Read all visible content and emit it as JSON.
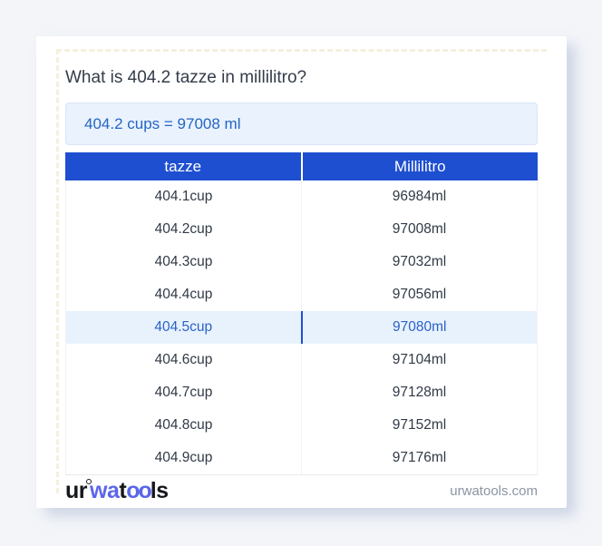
{
  "page": {
    "title": "What is 404.2 tazze in millilitro?",
    "answer": "404.2 cups = 97008 ml"
  },
  "table": {
    "headers": [
      "tazze",
      "Millilitro"
    ],
    "highlight_index": 4,
    "rows": [
      {
        "cup": "404.1cup",
        "ml": "96984ml"
      },
      {
        "cup": "404.2cup",
        "ml": "97008ml"
      },
      {
        "cup": "404.3cup",
        "ml": "97032ml"
      },
      {
        "cup": "404.4cup",
        "ml": "97056ml"
      },
      {
        "cup": "404.5cup",
        "ml": "97080ml"
      },
      {
        "cup": "404.6cup",
        "ml": "97104ml"
      },
      {
        "cup": "404.7cup",
        "ml": "97128ml"
      },
      {
        "cup": "404.8cup",
        "ml": "97152ml"
      },
      {
        "cup": "404.9cup",
        "ml": "97176ml"
      }
    ]
  },
  "footer": {
    "logo": {
      "part1": "ur",
      "part2": "wa",
      "part3": "t",
      "part4": "oo",
      "part5": "ls"
    },
    "site": "urwatools.com"
  },
  "colors": {
    "header_blue": "#1e4fd1",
    "answer_blue": "#2565c4",
    "answer_bg": "#e9f2fd",
    "highlight_bg": "#e8f2fd",
    "highlight_text": "#2c62c9",
    "logo_blue": "#5b66e9",
    "page_bg": "#f3f5f9"
  }
}
